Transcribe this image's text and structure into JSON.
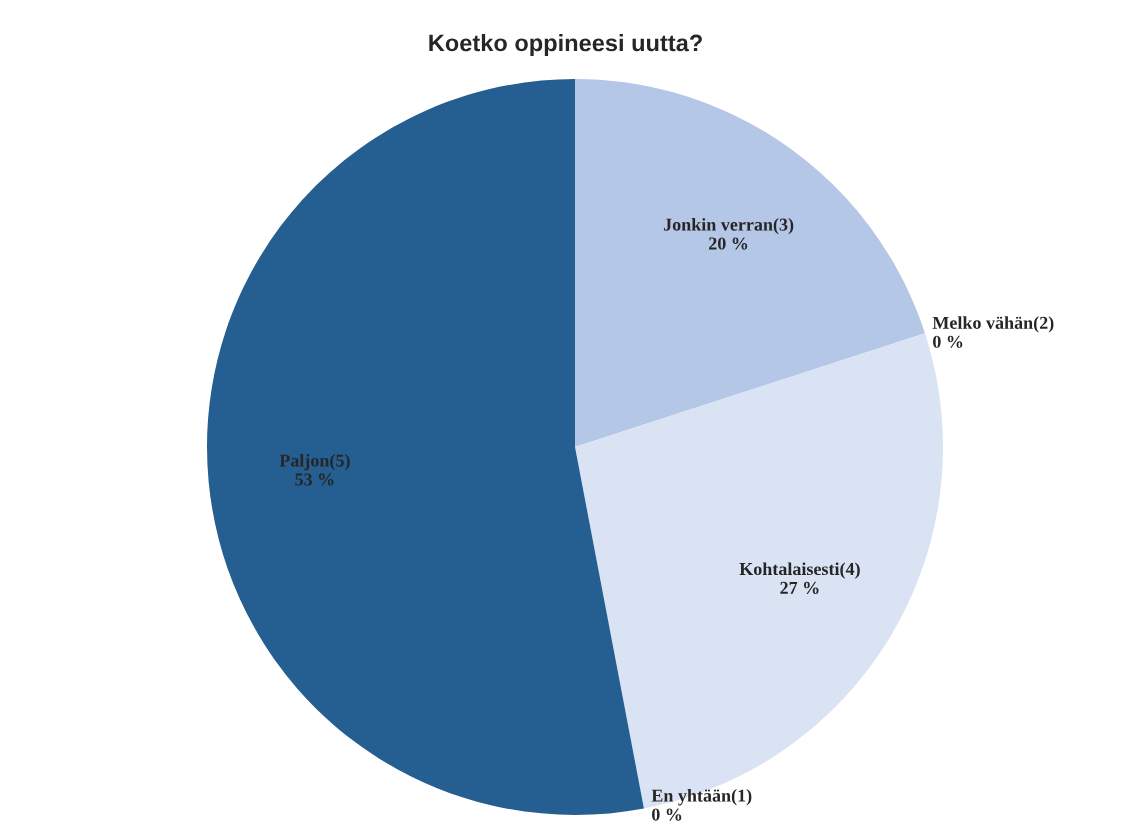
{
  "chart_data": {
    "type": "pie",
    "title": "Koetko oppineesi uutta?",
    "categories": [
      "Jonkin verran(3)",
      "Melko vähän(2)",
      "Kohtalaisesti(4)",
      "En yhtään(1)",
      "Paljon(5)"
    ],
    "values": [
      20,
      0,
      27,
      0,
      53
    ],
    "colors": [
      "#b4c7e7",
      "#8faadc",
      "#dae3f3",
      "#2e75b6",
      "#255e91"
    ],
    "value_labels": [
      "20 %",
      "0 %",
      "27 %",
      "0 %",
      "53 %"
    ],
    "legend": false
  }
}
